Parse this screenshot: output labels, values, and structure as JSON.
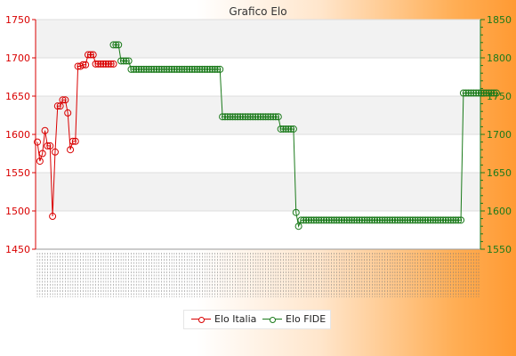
{
  "chart_data": {
    "type": "line",
    "title": "Grafico Elo",
    "y_left": {
      "min": 1450,
      "max": 1750,
      "ticks": [
        1450,
        1500,
        1550,
        1600,
        1650,
        1700,
        1750
      ],
      "color": "#d90000"
    },
    "y_right": {
      "min": 1550,
      "max": 1850,
      "ticks": [
        1550,
        1600,
        1650,
        1700,
        1750,
        1800,
        1850
      ],
      "color": "#1a7a1a"
    },
    "n_points": 175,
    "series": [
      {
        "name": "Elo Italia",
        "axis": "left",
        "color": "#d90000",
        "values": [
          1590,
          1565,
          1575,
          1605,
          1585,
          1585,
          1493,
          1577,
          1637,
          1637,
          1645,
          1645,
          1628,
          1580,
          1591,
          1591,
          1689,
          1689,
          1691,
          1691,
          1704,
          1704,
          1704,
          1692,
          1692,
          1692,
          1692,
          1692,
          1692,
          1692,
          1692
        ]
      },
      {
        "name": "Elo FIDE",
        "axis": "right",
        "color": "#1a7a1a",
        "start_index": 30,
        "values": [
          1817,
          1817,
          1817,
          1796,
          1796,
          1796,
          1796,
          1785,
          1785,
          1785,
          1785,
          1785,
          1785,
          1785,
          1785,
          1785,
          1785,
          1785,
          1785,
          1785,
          1785,
          1785,
          1785,
          1785,
          1785,
          1785,
          1785,
          1785,
          1785,
          1785,
          1785,
          1785,
          1785,
          1785,
          1785,
          1785,
          1785,
          1785,
          1785,
          1785,
          1785,
          1785,
          1785,
          1723,
          1723,
          1723,
          1723,
          1723,
          1723,
          1723,
          1723,
          1723,
          1723,
          1723,
          1723,
          1723,
          1723,
          1723,
          1723,
          1723,
          1723,
          1723,
          1723,
          1723,
          1723,
          1723,
          1707,
          1707,
          1707,
          1707,
          1707,
          1707,
          1598,
          1580,
          1588,
          1588,
          1588,
          1588,
          1588,
          1588,
          1588,
          1588,
          1588,
          1588,
          1588,
          1588,
          1588,
          1588,
          1588,
          1588,
          1588,
          1588,
          1588,
          1588,
          1588,
          1588,
          1588,
          1588,
          1588,
          1588,
          1588,
          1588,
          1588,
          1588,
          1588,
          1588,
          1588,
          1588,
          1588,
          1588,
          1588,
          1588,
          1588,
          1588,
          1588,
          1588,
          1588,
          1588,
          1588,
          1588,
          1588,
          1588,
          1588,
          1588,
          1588,
          1588,
          1588,
          1588,
          1588,
          1588,
          1588,
          1588,
          1588,
          1588,
          1588,
          1588,
          1588,
          1588,
          1754,
          1754,
          1754,
          1754,
          1754,
          1754,
          1754,
          1754,
          1754,
          1754,
          1754,
          1754,
          1754,
          1754
        ]
      }
    ],
    "legend": {
      "position": "bottom-center",
      "entries": [
        "Elo Italia",
        "Elo FIDE"
      ]
    }
  }
}
